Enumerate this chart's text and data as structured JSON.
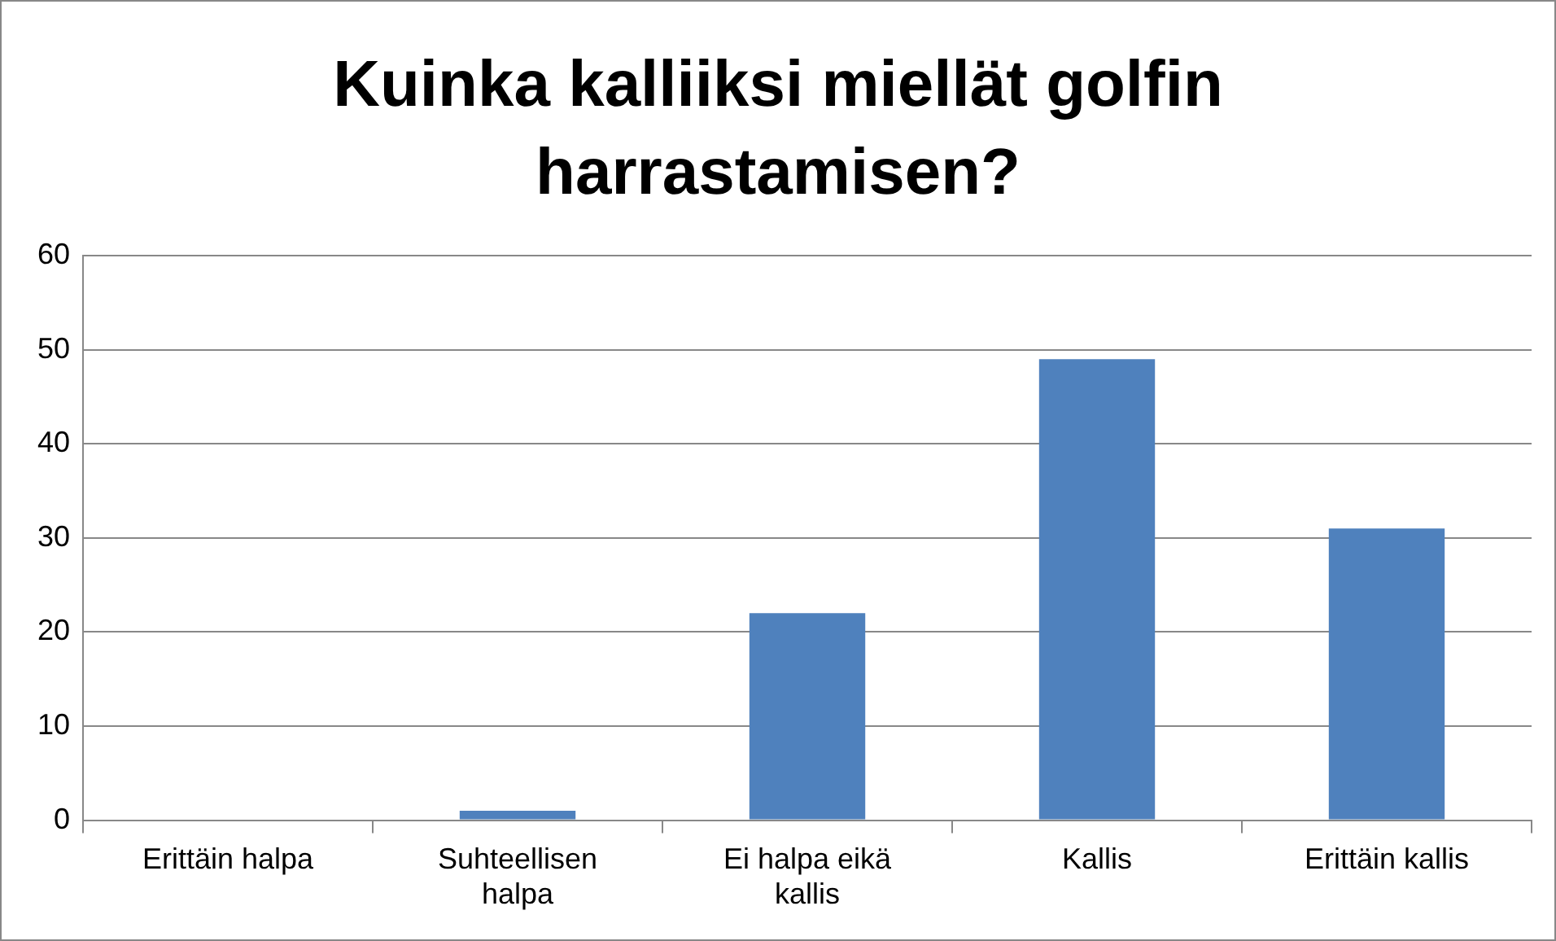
{
  "chart_data": {
    "type": "bar",
    "title": "Kuinka kalliiksi miellät golfin harrastamisen?",
    "categories": [
      "Erittäin halpa",
      "Suhteellisen halpa",
      "Ei halpa eikä kallis",
      "Kallis",
      "Erittäin kallis"
    ],
    "values": [
      0,
      1,
      22,
      49,
      31
    ],
    "color": "#4f81bd",
    "ylim": [
      0,
      60
    ],
    "yticks": [
      0,
      10,
      20,
      30,
      40,
      50,
      60
    ],
    "grid": "y",
    "legend": false
  }
}
